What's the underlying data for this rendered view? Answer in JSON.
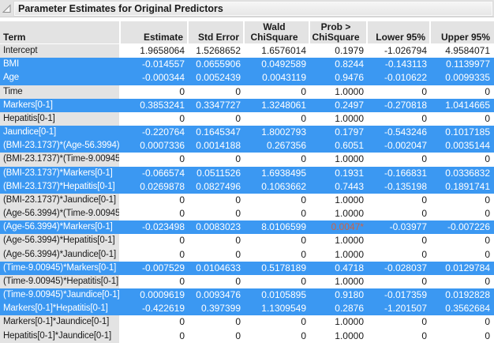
{
  "title": "Parameter Estimates for Original Predictors",
  "icons": {
    "disclosure": "disclosure-open-icon"
  },
  "colors": {
    "selection_blue": "#3b98f2",
    "header_gray": "#e3e3e3",
    "significant_value": "#cd6445"
  },
  "table": {
    "headers": [
      "Term",
      "Estimate",
      "Std Error",
      "Wald\nChiSquare",
      "Prob >\nChiSquare",
      "Lower 95%",
      "Upper 95%"
    ],
    "rows": [
      {
        "term": "Intercept",
        "estimate": "1.9658064",
        "std_error": "1.5268652",
        "wald": "1.6576014",
        "prob": "0.1979",
        "lower": "-1.026794",
        "upper": "4.9584071",
        "selected": false,
        "significant": false
      },
      {
        "term": "BMI",
        "estimate": "-0.014557",
        "std_error": "0.0655906",
        "wald": "0.0492589",
        "prob": "0.8244",
        "lower": "-0.143113",
        "upper": "0.1139977",
        "selected": true,
        "significant": false
      },
      {
        "term": "Age",
        "estimate": "-0.000344",
        "std_error": "0.0052439",
        "wald": "0.0043119",
        "prob": "0.9476",
        "lower": "-0.010622",
        "upper": "0.0099335",
        "selected": true,
        "significant": false
      },
      {
        "term": "Time",
        "estimate": "0",
        "std_error": "0",
        "wald": "0",
        "prob": "1.0000",
        "lower": "0",
        "upper": "0",
        "selected": false,
        "significant": false
      },
      {
        "term": "Markers[0-1]",
        "estimate": "0.3853241",
        "std_error": "0.3347727",
        "wald": "1.3248061",
        "prob": "0.2497",
        "lower": "-0.270818",
        "upper": "1.0414665",
        "selected": true,
        "significant": false
      },
      {
        "term": "Hepatitis[0-1]",
        "estimate": "0",
        "std_error": "0",
        "wald": "0",
        "prob": "1.0000",
        "lower": "0",
        "upper": "0",
        "selected": false,
        "significant": false
      },
      {
        "term": "Jaundice[0-1]",
        "estimate": "-0.220764",
        "std_error": "0.1645347",
        "wald": "1.8002793",
        "prob": "0.1797",
        "lower": "-0.543246",
        "upper": "0.1017185",
        "selected": true,
        "significant": false
      },
      {
        "term": "(BMI-23.1737)*(Age-56.3994)",
        "estimate": "0.0007336",
        "std_error": "0.0014188",
        "wald": "0.267356",
        "prob": "0.6051",
        "lower": "-0.002047",
        "upper": "0.0035144",
        "selected": true,
        "significant": false
      },
      {
        "term": "(BMI-23.1737)*(Time-9.00945)",
        "estimate": "0",
        "std_error": "0",
        "wald": "0",
        "prob": "1.0000",
        "lower": "0",
        "upper": "0",
        "selected": false,
        "significant": false
      },
      {
        "term": "(BMI-23.1737)*Markers[0-1]",
        "estimate": "-0.066574",
        "std_error": "0.0511526",
        "wald": "1.6938495",
        "prob": "0.1931",
        "lower": "-0.166831",
        "upper": "0.0336832",
        "selected": true,
        "significant": false
      },
      {
        "term": "(BMI-23.1737)*Hepatitis[0-1]",
        "estimate": "0.0269878",
        "std_error": "0.0827496",
        "wald": "0.1063662",
        "prob": "0.7443",
        "lower": "-0.135198",
        "upper": "0.1891741",
        "selected": true,
        "significant": false
      },
      {
        "term": "(BMI-23.1737)*Jaundice[0-1]",
        "estimate": "0",
        "std_error": "0",
        "wald": "0",
        "prob": "1.0000",
        "lower": "0",
        "upper": "0",
        "selected": false,
        "significant": false
      },
      {
        "term": "(Age-56.3994)*(Time-9.00945)",
        "estimate": "0",
        "std_error": "0",
        "wald": "0",
        "prob": "1.0000",
        "lower": "0",
        "upper": "0",
        "selected": false,
        "significant": false
      },
      {
        "term": "(Age-56.3994)*Markers[0-1]",
        "estimate": "-0.023498",
        "std_error": "0.0083023",
        "wald": "8.0106599",
        "prob": "0.0047*",
        "lower": "-0.03977",
        "upper": "-0.007226",
        "selected": true,
        "significant": true
      },
      {
        "term": "(Age-56.3994)*Hepatitis[0-1]",
        "estimate": "0",
        "std_error": "0",
        "wald": "0",
        "prob": "1.0000",
        "lower": "0",
        "upper": "0",
        "selected": false,
        "significant": false
      },
      {
        "term": "(Age-56.3994)*Jaundice[0-1]",
        "estimate": "0",
        "std_error": "0",
        "wald": "0",
        "prob": "1.0000",
        "lower": "0",
        "upper": "0",
        "selected": false,
        "significant": false
      },
      {
        "term": "(Time-9.00945)*Markers[0-1]",
        "estimate": "-0.007529",
        "std_error": "0.0104633",
        "wald": "0.5178189",
        "prob": "0.4718",
        "lower": "-0.028037",
        "upper": "0.0129784",
        "selected": true,
        "significant": false
      },
      {
        "term": "(Time-9.00945)*Hepatitis[0-1]",
        "estimate": "0",
        "std_error": "0",
        "wald": "0",
        "prob": "1.0000",
        "lower": "0",
        "upper": "0",
        "selected": false,
        "significant": false
      },
      {
        "term": "(Time-9.00945)*Jaundice[0-1]",
        "estimate": "0.0009619",
        "std_error": "0.0093476",
        "wald": "0.0105895",
        "prob": "0.9180",
        "lower": "-0.017359",
        "upper": "0.0192828",
        "selected": true,
        "significant": false
      },
      {
        "term": "Markers[0-1]*Hepatitis[0-1]",
        "estimate": "-0.422619",
        "std_error": "0.397399",
        "wald": "1.1309549",
        "prob": "0.2876",
        "lower": "-1.201507",
        "upper": "0.3562684",
        "selected": true,
        "significant": false
      },
      {
        "term": "Markers[0-1]*Jaundice[0-1]",
        "estimate": "0",
        "std_error": "0",
        "wald": "0",
        "prob": "1.0000",
        "lower": "0",
        "upper": "0",
        "selected": false,
        "significant": false
      },
      {
        "term": "Hepatitis[0-1]*Jaundice[0-1]",
        "estimate": "0",
        "std_error": "0",
        "wald": "0",
        "prob": "1.0000",
        "lower": "0",
        "upper": "0",
        "selected": false,
        "significant": false
      }
    ]
  }
}
